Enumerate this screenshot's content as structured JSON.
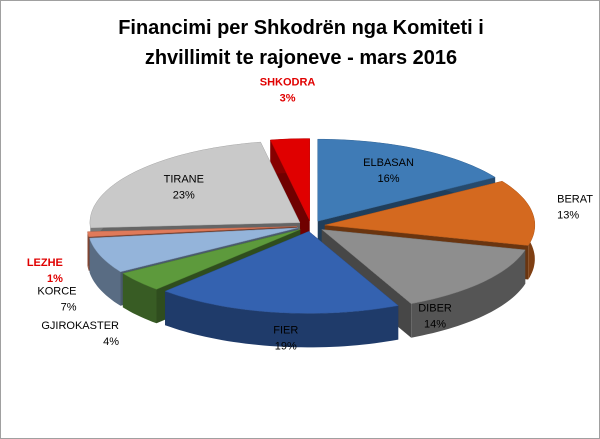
{
  "chart_data": {
    "type": "pie3d",
    "title": "Financimi per Shkodrën nga Komiteti i zhvillimit te rajoneve - mars 2016",
    "categories": [
      "ELBASAN",
      "BERAT",
      "DIBER",
      "FIER",
      "GJIROKASTER",
      "KORCE",
      "LEZHE",
      "TIRANE",
      "SHKODRA"
    ],
    "values": [
      16,
      13,
      14,
      19,
      4,
      7,
      1,
      23,
      3
    ],
    "value_labels": [
      "16%",
      "13%",
      "14%",
      "19%",
      "4%",
      "7%",
      "1%",
      "23%",
      "3%"
    ],
    "colors": [
      "#3f7bb6",
      "#d4691f",
      "#8e8e8e",
      "#3462b0",
      "#5d9a3c",
      "#94b4da",
      "#e07a5a",
      "#c9c9c9",
      "#e00000"
    ],
    "label_colors": [
      "#000000",
      "#000000",
      "#000000",
      "#000000",
      "#000000",
      "#000000",
      "#e00000",
      "#000000",
      "#e00000"
    ]
  }
}
